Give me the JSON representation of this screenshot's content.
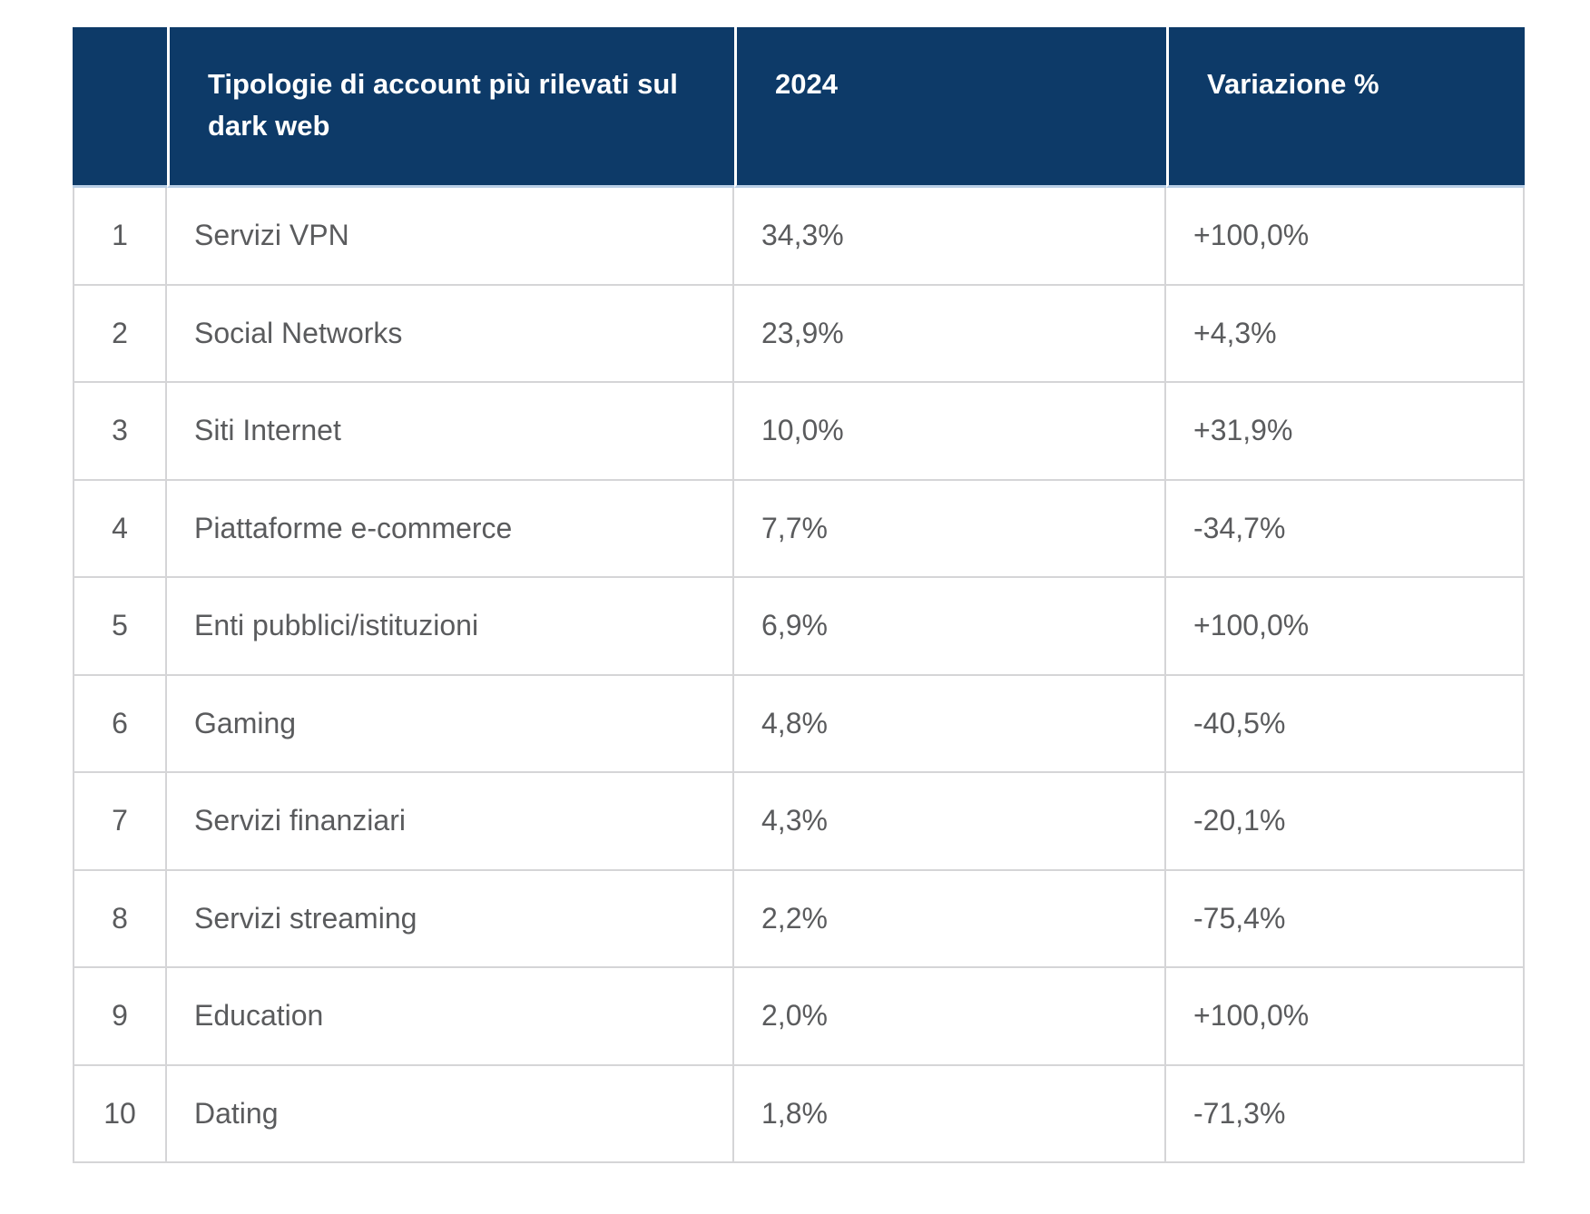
{
  "table": {
    "headers": {
      "rank": "",
      "category": "Tipologie di account più rilevati sul dark web",
      "year": "2024",
      "variation": "Variazione %"
    },
    "rows": [
      {
        "rank": "1",
        "category": "Servizi VPN",
        "value_2024": "34,3%",
        "variation": "+100,0%"
      },
      {
        "rank": "2",
        "category": "Social Networks",
        "value_2024": "23,9%",
        "variation": "+4,3%"
      },
      {
        "rank": "3",
        "category": "Siti Internet",
        "value_2024": "10,0%",
        "variation": "+31,9%"
      },
      {
        "rank": "4",
        "category": "Piattaforme e-commerce",
        "value_2024": "7,7%",
        "variation": "-34,7%"
      },
      {
        "rank": "5",
        "category": "Enti pubblici/istituzioni",
        "value_2024": "6,9%",
        "variation": "+100,0%"
      },
      {
        "rank": "6",
        "category": "Gaming",
        "value_2024": "4,8%",
        "variation": "-40,5%"
      },
      {
        "rank": "7",
        "category": "Servizi finanziari",
        "value_2024": "4,3%",
        "variation": "-20,1%"
      },
      {
        "rank": "8",
        "category": "Servizi streaming",
        "value_2024": "2,2%",
        "variation": "-75,4%"
      },
      {
        "rank": "9",
        "category": "Education",
        "value_2024": "2,0%",
        "variation": "+100,0%"
      },
      {
        "rank": "10",
        "category": "Dating",
        "value_2024": "1,8%",
        "variation": "-71,3%"
      }
    ],
    "colors": {
      "header_bg": "#0d3a68",
      "header_text": "#ffffff",
      "body_bg": "#ffffff",
      "body_text": "#5a5b5d",
      "border": "#d5d5d7",
      "header_divider": "#ffffff",
      "header_underline": "#b9cfe6"
    }
  }
}
